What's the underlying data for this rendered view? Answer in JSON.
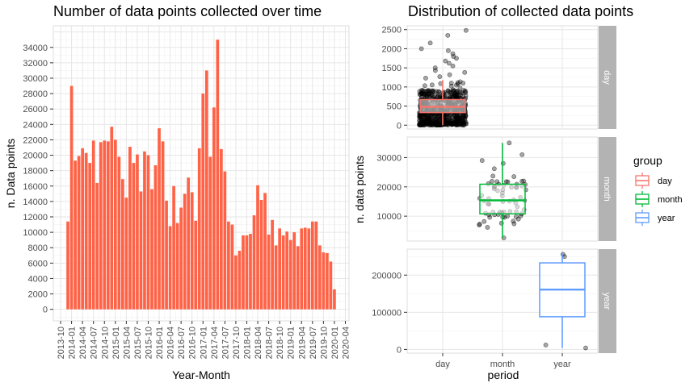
{
  "chart_data": [
    {
      "type": "bar",
      "title": "Number of data points collected over time",
      "xlabel": "Year-Month",
      "ylabel": "n. Data points",
      "bar_color": "#ff6347",
      "ylim": [
        -1500,
        36800
      ],
      "yticks": [
        0,
        2000,
        4000,
        6000,
        8000,
        10000,
        12000,
        14000,
        16000,
        18000,
        20000,
        22000,
        24000,
        26000,
        28000,
        30000,
        32000,
        34000
      ],
      "xticks": [
        "2013-10",
        "2014-01",
        "2014-04",
        "2014-07",
        "2014-10",
        "2015-01",
        "2015-04",
        "2015-07",
        "2015-10",
        "2016-01",
        "2016-04",
        "2016-07",
        "2016-10",
        "2017-01",
        "2017-04",
        "2017-07",
        "2017-10",
        "2018-01",
        "2018-04",
        "2018-07",
        "2018-10",
        "2019-01",
        "2019-04",
        "2019-07",
        "2019-10",
        "2020-01",
        "2020-04"
      ],
      "start_month": "2013-12",
      "values": [
        11400,
        29000,
        19300,
        19900,
        20900,
        20300,
        19000,
        21900,
        16400,
        21700,
        21900,
        21800,
        23700,
        22000,
        19800,
        16900,
        14500,
        21100,
        19000,
        20100,
        15300,
        20500,
        20000,
        15600,
        18700,
        23500,
        21800,
        14100,
        10800,
        16000,
        11200,
        13200,
        15000,
        17100,
        15200,
        11500,
        20900,
        28000,
        31000,
        19800,
        26200,
        35000,
        20800,
        17900,
        11400,
        11000,
        7000,
        7600,
        9600,
        9600,
        9800,
        12200,
        16100,
        14200,
        15100,
        9700,
        11600,
        8300,
        10500,
        9600,
        10100,
        9000,
        10000,
        8200,
        10500,
        10600,
        10500,
        11400,
        11400,
        8300,
        7400,
        7300,
        6200,
        2600
      ]
    },
    {
      "type": "box-jitter",
      "title": "Distribution of collected data points",
      "xlabel": "period",
      "ylabel": "n. data points",
      "categories": [
        "day",
        "month",
        "year"
      ],
      "legend": {
        "title": "group",
        "items": [
          "day",
          "month",
          "year"
        ],
        "colors": [
          "#f8766d",
          "#00ba38",
          "#619cff"
        ]
      },
      "panels": [
        {
          "strip": "day",
          "ylim": [
            -100,
            2600
          ],
          "yticks": [
            0,
            500,
            1000,
            1500,
            2000,
            2500
          ],
          "box": {
            "category": "day",
            "q1": 330,
            "median": 480,
            "q3": 670,
            "min": 0,
            "max": 1180,
            "color": "#f8766d"
          },
          "points": {
            "category": "day",
            "dense_range": [
              0,
              1150
            ],
            "outliers": [
              1230,
              1270,
              1320,
              1380,
              1430,
              1500,
              1550,
              1620,
              1680,
              1750,
              1800,
              1870,
              1950,
              2000,
              2150,
              2350,
              2480
            ]
          }
        },
        {
          "strip": "month",
          "ylim": [
            1500,
            37000
          ],
          "yticks": [
            10000,
            20000,
            30000
          ],
          "box": {
            "category": "month",
            "q1": 10800,
            "median": 15400,
            "q3": 20900,
            "min": 2600,
            "max": 35000,
            "color": "#00ba38"
          },
          "points": {
            "category": "month",
            "values": [
              2600,
              6200,
              7000,
              7300,
              7400,
              7600,
              8200,
              8300,
              9000,
              9600,
              9600,
              9700,
              9800,
              10000,
              10100,
              10500,
              10500,
              10600,
              10800,
              11000,
              11200,
              11400,
              11400,
              11400,
              11500,
              11600,
              12200,
              13200,
              14100,
              14200,
              14500,
              15000,
              15100,
              15200,
              15300,
              15600,
              16000,
              16100,
              16400,
              16900,
              17100,
              17900,
              18700,
              19000,
              19000,
              19300,
              19800,
              19800,
              19900,
              20000,
              20100,
              20300,
              20500,
              20800,
              20900,
              20900,
              21100,
              21700,
              21800,
              21800,
              21900,
              21900,
              22000,
              23500,
              23700,
              26200,
              28000,
              29000,
              31000,
              35000
            ]
          }
        },
        {
          "strip": "year",
          "ylim": [
            -10000,
            270000
          ],
          "yticks": [
            0,
            100000,
            200000
          ],
          "box": {
            "category": "year",
            "q1": 88000,
            "median": 161000,
            "q3": 233000,
            "min": 4000,
            "max": 258000,
            "color": "#619cff"
          },
          "points": {
            "category": "year",
            "values": [
              4000,
              12000,
              250000,
              256000
            ]
          }
        }
      ]
    }
  ]
}
